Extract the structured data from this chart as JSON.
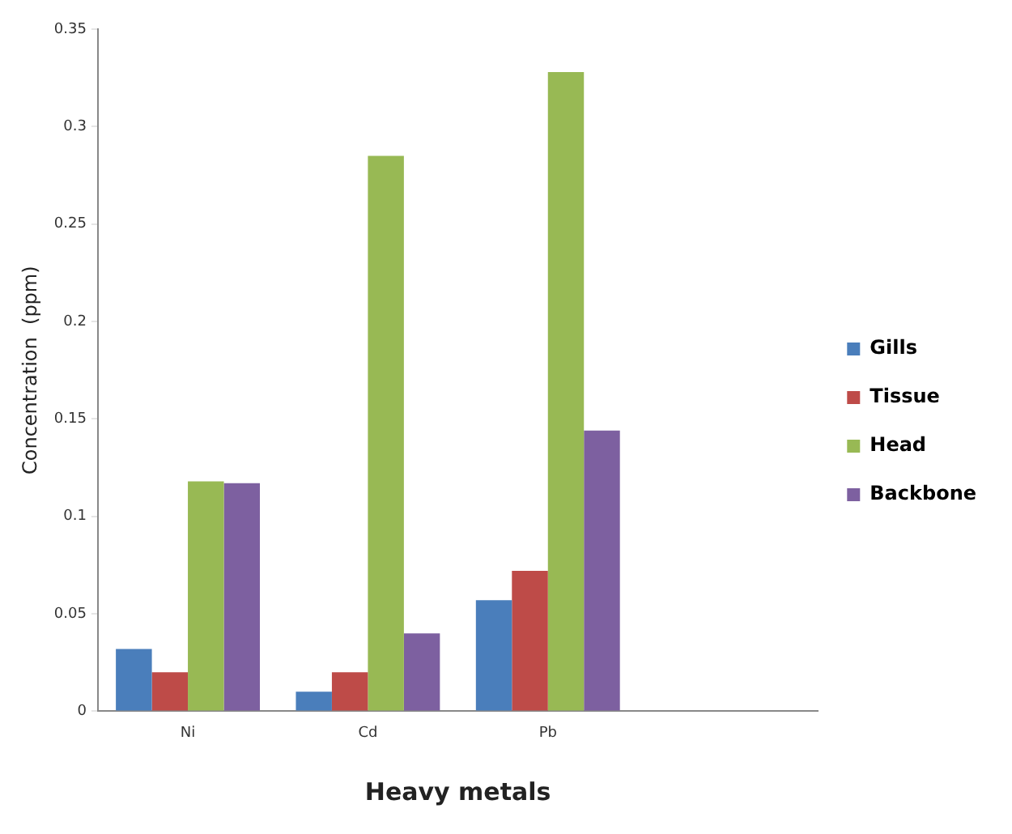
{
  "chart_data": {
    "type": "bar",
    "xlabel": "Heavy metals",
    "ylabel": "Concentration  (ppm)",
    "categories": [
      "Ni",
      "Cd",
      "Pb",
      null
    ],
    "series": [
      {
        "name": "Gills",
        "color": "#4a7ebb",
        "values": [
          0.032,
          0.01,
          0.057,
          null
        ]
      },
      {
        "name": "Tissue",
        "color": "#be4b48",
        "values": [
          0.02,
          0.02,
          0.072,
          null
        ]
      },
      {
        "name": "Head",
        "color": "#98b954",
        "values": [
          0.118,
          0.285,
          0.328,
          null
        ]
      },
      {
        "name": "Backbone",
        "color": "#7d60a0",
        "values": [
          0.117,
          0.04,
          0.144,
          null
        ]
      }
    ],
    "ylim": [
      0,
      0.35
    ],
    "yticks": [
      0,
      0.05,
      0.1,
      0.15,
      0.2,
      0.25,
      0.3,
      0.35
    ],
    "grid": false,
    "legend": "right"
  }
}
